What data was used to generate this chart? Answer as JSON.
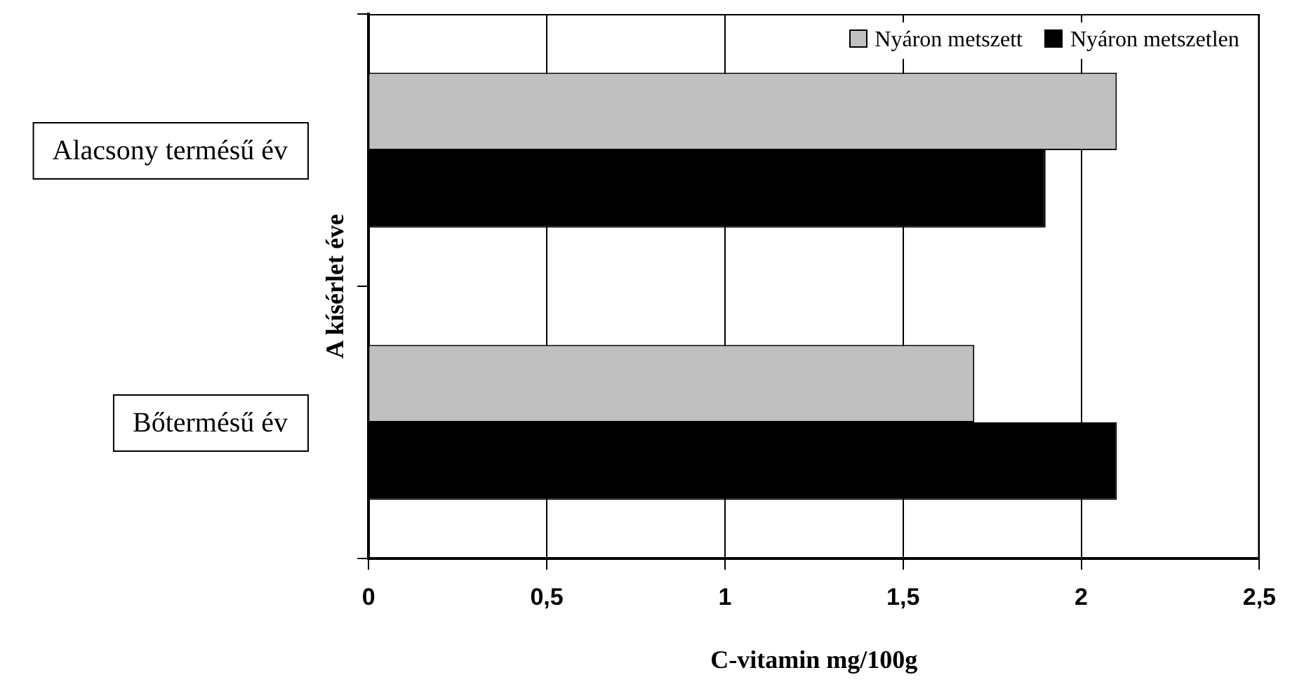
{
  "chart_data": {
    "type": "bar",
    "orientation": "horizontal",
    "xlabel": "C-vitamin mg/100g",
    "ylabel": "A kísérlet éve",
    "categories": [
      "Alacsony termésű év",
      "Bőtermésű év"
    ],
    "series": [
      {
        "name": "Nyáron metszett",
        "color": "#c0c0c0",
        "values": [
          2.1,
          1.7
        ]
      },
      {
        "name": "Nyáron metszetlen",
        "color": "#000000",
        "values": [
          1.9,
          2.1
        ]
      }
    ],
    "xlim": [
      0,
      2.5
    ],
    "xticks": [
      0,
      {
        "value": 0.5,
        "label": "0,5"
      },
      1,
      {
        "value": 1.5,
        "label": "1,5"
      },
      2,
      {
        "value": 2.5,
        "label": "2,5"
      }
    ],
    "grid": "x",
    "legend": "top right"
  }
}
